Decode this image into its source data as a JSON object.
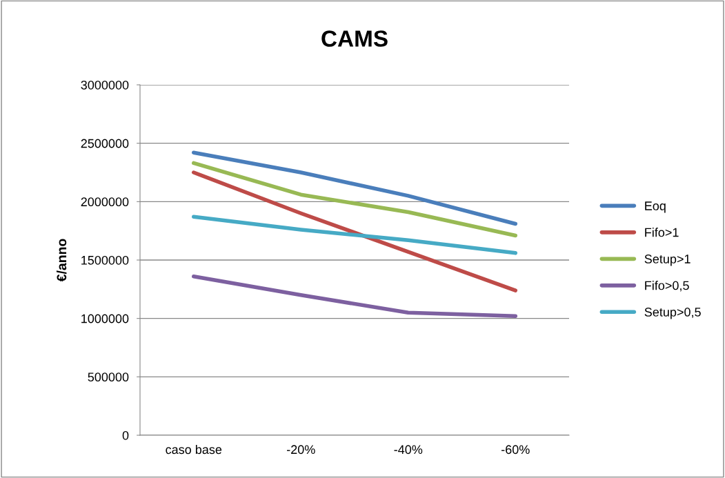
{
  "chart_data": {
    "type": "line",
    "title": "CAMS",
    "ylabel": "€/anno",
    "categories": [
      "caso base",
      "-20%",
      "-40%",
      "-60%"
    ],
    "series": [
      {
        "name": "Eoq",
        "color": "#4a7ebb",
        "values": [
          2420000,
          2250000,
          2050000,
          1810000
        ]
      },
      {
        "name": "Fifo>1",
        "color": "#be4b48",
        "values": [
          2250000,
          1900000,
          1570000,
          1240000
        ]
      },
      {
        "name": "Setup>1",
        "color": "#98b954",
        "values": [
          2330000,
          2060000,
          1910000,
          1710000
        ]
      },
      {
        "name": "Fifo>0,5",
        "color": "#7d60a0",
        "values": [
          1360000,
          1200000,
          1050000,
          1020000
        ]
      },
      {
        "name": "Setup>0,5",
        "color": "#46aac5",
        "values": [
          1870000,
          1760000,
          1670000,
          1560000
        ]
      }
    ],
    "ylim": [
      0,
      3000000
    ],
    "yticks": [
      0,
      500000,
      1000000,
      1500000,
      2000000,
      2500000,
      3000000
    ],
    "grid": "y",
    "legend": "right",
    "marker": "none",
    "line_style": "solid"
  }
}
